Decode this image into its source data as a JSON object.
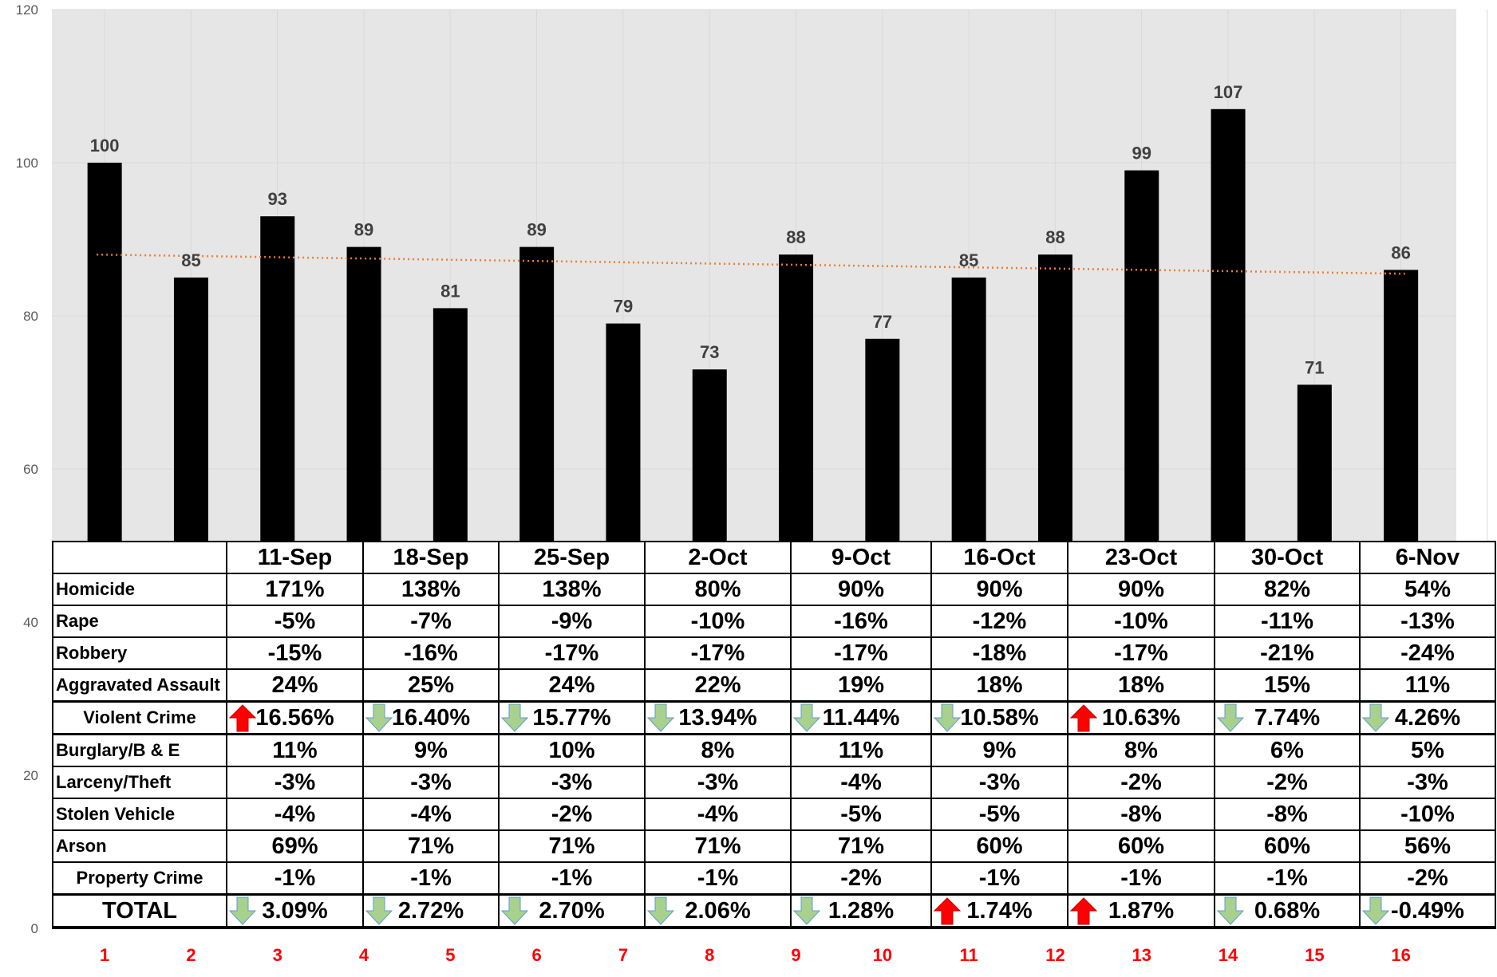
{
  "chart_data": {
    "type": "bar",
    "categories": [
      "1",
      "2",
      "3",
      "4",
      "5",
      "6",
      "7",
      "8",
      "9",
      "10",
      "11",
      "12",
      "13",
      "14",
      "15",
      "16"
    ],
    "values": [
      100,
      85,
      93,
      89,
      81,
      89,
      79,
      73,
      88,
      77,
      85,
      88,
      99,
      107,
      71,
      86
    ],
    "ylim": [
      0,
      120
    ],
    "yticks": [
      0,
      20,
      40,
      60,
      80,
      100,
      120
    ],
    "trendline": {
      "type": "linear",
      "color": "#ed7d31",
      "style": "dotted",
      "start": 88,
      "end": 85.5
    },
    "grid": true,
    "bar_color": "#000000",
    "label_color": "#404040",
    "category_label_color": "#ff0000"
  },
  "table": {
    "columns": [
      "11-Sep",
      "18-Sep",
      "25-Sep",
      "2-Oct",
      "9-Oct",
      "16-Oct",
      "23-Oct",
      "30-Oct",
      "6-Nov"
    ],
    "rows": [
      {
        "label": "Homicide",
        "values": [
          "171%",
          "138%",
          "138%",
          "80%",
          "90%",
          "90%",
          "90%",
          "82%",
          "54%"
        ]
      },
      {
        "label": "Rape",
        "values": [
          "-5%",
          "-7%",
          "-9%",
          "-10%",
          "-16%",
          "-12%",
          "-10%",
          "-11%",
          "-13%"
        ]
      },
      {
        "label": "Robbery",
        "values": [
          "-15%",
          "-16%",
          "-17%",
          "-17%",
          "-17%",
          "-18%",
          "-17%",
          "-21%",
          "-24%"
        ]
      },
      {
        "label": "Aggravated Assault",
        "values": [
          "24%",
          "25%",
          "24%",
          "22%",
          "19%",
          "18%",
          "18%",
          "15%",
          "11%"
        ]
      },
      {
        "label": "Violent Crime",
        "type": "subtotal",
        "values": [
          "16.56%",
          "16.40%",
          "15.77%",
          "13.94%",
          "11.44%",
          "10.58%",
          "10.63%",
          "7.74%",
          "4.26%"
        ],
        "arrows": [
          "up",
          "down",
          "down",
          "down",
          "down",
          "down",
          "up",
          "down",
          "down"
        ]
      },
      {
        "label": "Burglary/B & E",
        "values": [
          "11%",
          "9%",
          "10%",
          "8%",
          "11%",
          "9%",
          "8%",
          "6%",
          "5%"
        ]
      },
      {
        "label": "Larceny/Theft",
        "values": [
          "-3%",
          "-3%",
          "-3%",
          "-3%",
          "-4%",
          "-3%",
          "-2%",
          "-2%",
          "-3%"
        ]
      },
      {
        "label": "Stolen Vehicle",
        "values": [
          "-4%",
          "-4%",
          "-2%",
          "-4%",
          "-5%",
          "-5%",
          "-8%",
          "-8%",
          "-10%"
        ]
      },
      {
        "label": "Arson",
        "values": [
          "69%",
          "71%",
          "71%",
          "71%",
          "71%",
          "60%",
          "60%",
          "60%",
          "56%"
        ]
      },
      {
        "label": "Property Crime",
        "type": "indent",
        "values": [
          "-1%",
          "-1%",
          "-1%",
          "-1%",
          "-2%",
          "-1%",
          "-1%",
          "-1%",
          "-2%"
        ]
      },
      {
        "label": "TOTAL",
        "type": "total",
        "values": [
          "3.09%",
          "2.72%",
          "2.70%",
          "2.06%",
          "1.28%",
          "1.74%",
          "1.87%",
          "0.68%",
          "-0.49%"
        ],
        "arrows": [
          "down",
          "down",
          "down",
          "down",
          "down",
          "up",
          "up",
          "down",
          "down"
        ]
      }
    ],
    "arrow_colors": {
      "up": "#ff0000",
      "down": "#a9d18e"
    }
  }
}
